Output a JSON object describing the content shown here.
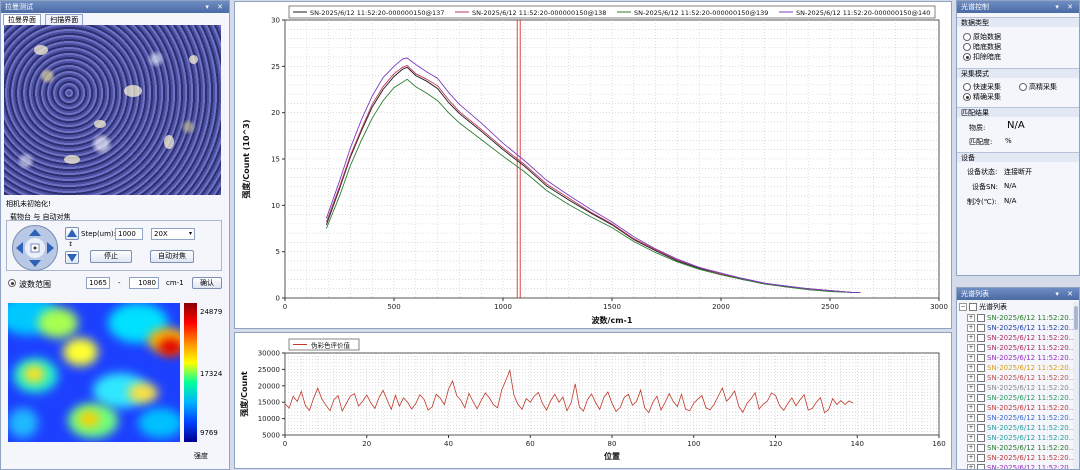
{
  "camera_panel": {
    "title": "拉曼测试",
    "tabs": [
      "拉曼界面",
      "扫描界面"
    ],
    "status_text": "相机未初始化!",
    "group_title": "载物台 与 自动对焦",
    "step_label": "Step(um):",
    "step_value": "1000",
    "magnification": "20X",
    "stop_button": "停止",
    "autofocus_button": "自动对焦",
    "wavenumber_range_label": "波数范围",
    "range_from": "1065",
    "range_sep": "-",
    "range_to": "1080",
    "range_unit": "cm-1",
    "confirm_button": "确认",
    "colorbar_max": "24879",
    "colorbar_mid": "17324",
    "colorbar_min": "9769",
    "colorbar_label": "强度"
  },
  "right_panel": {
    "title": "光谱控制",
    "data_type_title": "数据类型",
    "data_types": [
      "原始数据",
      "暗底数据",
      "扣除暗底"
    ],
    "data_type_selected": 2,
    "acq_mode_title": "采集模式",
    "acq_modes": [
      "快速采集",
      "高精采集",
      "精确采集"
    ],
    "acq_mode_selected": 2,
    "match_title": "匹配结果",
    "substance_label": "物质:",
    "substance_value": "N/A",
    "match_rate_label": "匹配度:",
    "match_rate_value": "%",
    "device_title": "设备",
    "device_status_label": "设备状态:",
    "device_status_value": "连接断开",
    "device_sn_label": "设备SN:",
    "device_sn_value": "N/A",
    "cooling_label": "制冷(℃):",
    "cooling_value": "N/A"
  },
  "list_panel": {
    "title": "光谱列表",
    "root_label": "光谱列表",
    "items": [
      {
        "label": "SN-2025/6/12 11:52:20...",
        "color": "#2a7a2a"
      },
      {
        "label": "SN-2025/6/12 11:52:20...",
        "color": "#1f3fa8"
      },
      {
        "label": "SN-2025/6/12 11:52:20...",
        "color": "#b03060"
      },
      {
        "label": "SN-2025/6/12 11:52:20...",
        "color": "#b03060"
      },
      {
        "label": "SN-2025/6/12 11:52:20...",
        "color": "#9b2fbf"
      },
      {
        "label": "SN-2025/6/12 11:52:20...",
        "color": "#d9a017"
      },
      {
        "label": "SN-2025/6/12 11:52:20...",
        "color": "#c05050"
      },
      {
        "label": "SN-2025/6/12 11:52:20...",
        "color": "#8a8a8a"
      },
      {
        "label": "SN-2025/6/12 11:52:20...",
        "color": "#2a9a5a"
      },
      {
        "label": "SN-2025/6/12 11:52:20...",
        "color": "#c23a3a"
      },
      {
        "label": "SN-2025/6/12 11:52:20...",
        "color": "#3a6ad0"
      },
      {
        "label": "SN-2025/6/12 11:52:20...",
        "color": "#2aa0a0"
      },
      {
        "label": "SN-2025/6/12 11:52:20...",
        "color": "#2aa0a0"
      },
      {
        "label": "SN-2025/6/12 11:52:20...",
        "color": "#2a7a2a"
      },
      {
        "label": "SN-2025/6/12 11:52:20...",
        "color": "#c23a3a"
      },
      {
        "label": "SN-2025/6/12 11:52:20...",
        "color": "#9b2fbf"
      },
      {
        "label": "SN-2025/6/12 11:52:20...",
        "color": "#2a7a2a"
      },
      {
        "label": "SN-2025/6/12 11:52:20...",
        "color": "#d9a017"
      }
    ]
  },
  "chart_data": [
    {
      "type": "line",
      "xlabel": "波数/cm-1",
      "ylabel": "强度/Count (10^3)",
      "xlim": [
        0,
        3000
      ],
      "ylim": [
        0,
        30
      ],
      "xticks": [
        0,
        500,
        1000,
        1500,
        2000,
        2500,
        3000
      ],
      "yticks": [
        0,
        5,
        10,
        15,
        20,
        25,
        30
      ],
      "grid": true,
      "legend_position": "top",
      "marker_line_x": 1072,
      "x": [
        190,
        250,
        300,
        350,
        400,
        450,
        500,
        540,
        560,
        600,
        650,
        700,
        750,
        800,
        900,
        1000,
        1100,
        1200,
        1300,
        1400,
        1500,
        1600,
        1700,
        1800,
        1900,
        2000,
        2100,
        2200,
        2300,
        2400,
        2500,
        2600,
        2640
      ],
      "series": [
        {
          "name": "SN-2025/6/12 11:52:20-000000150@137",
          "color": "#1a1a1a",
          "values": [
            7.9,
            11.8,
            15.2,
            18.0,
            20.6,
            22.5,
            23.9,
            24.7,
            24.9,
            24.0,
            23.4,
            22.6,
            21.1,
            19.9,
            18.0,
            16.0,
            14.2,
            12.1,
            10.6,
            9.2,
            7.9,
            6.3,
            5.1,
            4.0,
            3.2,
            2.6,
            2.0,
            1.6,
            1.2,
            1.0,
            0.8,
            0.6,
            0.6
          ]
        },
        {
          "name": "SN-2025/6/12 11:52:20-000000150@138",
          "color": "#c0395b",
          "values": [
            8.2,
            12.0,
            15.4,
            18.2,
            20.9,
            22.8,
            24.2,
            24.9,
            25.1,
            24.2,
            23.6,
            22.9,
            21.4,
            20.1,
            18.2,
            16.2,
            14.4,
            12.3,
            10.8,
            9.3,
            8.0,
            6.4,
            5.2,
            4.1,
            3.3,
            2.6,
            2.1,
            1.6,
            1.2,
            1.0,
            0.8,
            0.6,
            0.6
          ]
        },
        {
          "name": "SN-2025/6/12 11:52:20-000000150@139",
          "color": "#2e7d32",
          "values": [
            7.5,
            11.0,
            14.3,
            17.0,
            19.4,
            21.3,
            22.7,
            23.3,
            23.6,
            22.8,
            22.1,
            21.3,
            20.0,
            18.9,
            17.1,
            15.3,
            13.6,
            11.6,
            10.1,
            8.8,
            7.6,
            6.1,
            4.9,
            3.9,
            3.1,
            2.5,
            2.0,
            1.5,
            1.2,
            0.9,
            0.7,
            0.6,
            0.6
          ]
        },
        {
          "name": "SN-2025/6/12 11:52:20-000000150@140",
          "color": "#7b3fc4",
          "values": [
            8.6,
            12.6,
            16.2,
            19.2,
            21.8,
            23.8,
            25.0,
            25.8,
            25.9,
            25.2,
            24.4,
            23.7,
            22.2,
            20.9,
            18.9,
            16.7,
            14.8,
            12.7,
            11.1,
            9.6,
            8.2,
            6.6,
            5.3,
            4.2,
            3.3,
            2.7,
            2.1,
            1.6,
            1.3,
            1.0,
            0.8,
            0.6,
            0.6
          ]
        }
      ]
    },
    {
      "type": "line",
      "xlabel": "位置",
      "ylabel": "强度/Count",
      "xlim": [
        0,
        160
      ],
      "ylim": [
        5000,
        30000
      ],
      "xticks": [
        0,
        20,
        40,
        60,
        80,
        100,
        120,
        140,
        160
      ],
      "yticks": [
        5000,
        10000,
        15000,
        20000,
        25000,
        30000
      ],
      "grid": true,
      "legend_position": "top-left",
      "series": [
        {
          "name": "伪彩色评价值",
          "color": "#c0392b",
          "values": [
            14500,
            13200,
            16800,
            15200,
            18300,
            14000,
            12500,
            16200,
            19300,
            16000,
            14100,
            12400,
            15800,
            17000,
            12300,
            14600,
            16900,
            17600,
            13800,
            15300,
            17200,
            14800,
            13100,
            16400,
            18600,
            15600,
            12800,
            17100,
            13800,
            16300,
            15000,
            12900,
            14600,
            17300,
            15900,
            12600,
            13600,
            17400,
            16200,
            14300,
            19000,
            21500,
            17000,
            15600,
            13300,
            17700,
            15200,
            13000,
            15500,
            17800,
            16300,
            14200,
            13300,
            18600,
            21600,
            24700,
            17200,
            14300,
            12800,
            16100,
            15000,
            16900,
            18000,
            14600,
            12600,
            15500,
            17400,
            15000,
            16600,
            12400,
            14800,
            20600,
            13600,
            12300,
            15800,
            17500,
            14900,
            12800,
            16400,
            18100,
            14700,
            12200,
            13400,
            16500,
            17400,
            14100,
            15200,
            18700,
            13300,
            11800,
            15000,
            16800,
            12600,
            14900,
            17600,
            15200,
            13700,
            17400,
            12800,
            12400,
            14700,
            15900,
            17000,
            13300,
            12700,
            14400,
            16900,
            19300,
            15300,
            16600,
            18400,
            13800,
            11900,
            14600,
            16000,
            17900,
            12900,
            14400,
            15300,
            17800,
            17100,
            14000,
            12500,
            14600,
            16300,
            13900,
            15700,
            17300,
            12600,
            13100,
            15000,
            16400,
            11800,
            12700,
            16100,
            14300,
            15500,
            14300,
            15400,
            14700
          ]
        }
      ]
    }
  ]
}
